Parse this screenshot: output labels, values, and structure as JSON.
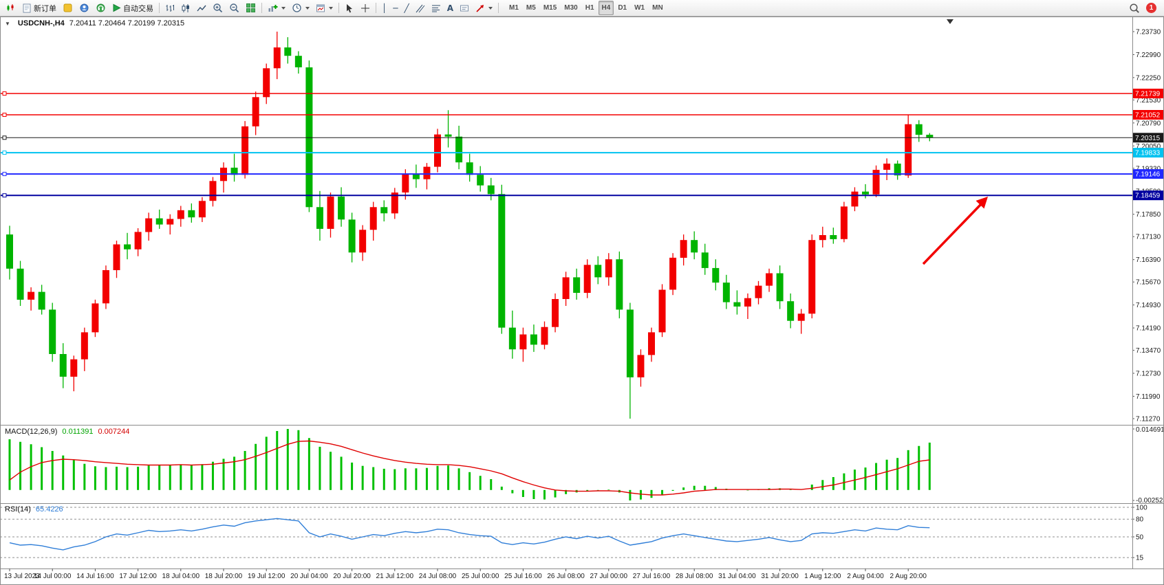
{
  "toolbar": {
    "new_order_label": "新订单",
    "autotrading_label": "自动交易",
    "timeframes": [
      "M1",
      "M5",
      "M15",
      "M30",
      "H1",
      "H4",
      "D1",
      "W1",
      "MN"
    ],
    "active_timeframe": "H4",
    "notification_count": "1"
  },
  "chart": {
    "title": "USDCNH-,H4",
    "ohlc_text": "7.20411 7.20464 7.20199 7.20315"
  },
  "chart_data": {
    "type": "candlestick",
    "symbol": "USDCNH-",
    "timeframe": "H4",
    "current_ohlc": {
      "open": 7.20411,
      "high": 7.20464,
      "low": 7.20199,
      "close": 7.20315
    },
    "price_range": {
      "top": 7.2373,
      "bottom": 7.1127
    },
    "price_axis_labels": [
      "7.23730",
      "7.22990",
      "7.22250",
      "7.21530",
      "7.20790",
      "7.20050",
      "7.19330",
      "7.18590",
      "7.17850",
      "7.17130",
      "7.16390",
      "7.15670",
      "7.14930",
      "7.14190",
      "7.13470",
      "7.12730",
      "7.11990",
      "7.11270"
    ],
    "time_labels": [
      "13 Jul 2023",
      "14 Jul 00:00",
      "14 Jul 16:00",
      "17 Jul 12:00",
      "18 Jul 04:00",
      "18 Jul 20:00",
      "19 Jul 12:00",
      "20 Jul 04:00",
      "20 Jul 20:00",
      "21 Jul 12:00",
      "24 Jul 08:00",
      "25 Jul 00:00",
      "25 Jul 16:00",
      "26 Jul 08:00",
      "27 Jul 00:00",
      "27 Jul 16:00",
      "28 Jul 08:00",
      "31 Jul 04:00",
      "31 Jul 20:00",
      "1 Aug 12:00",
      "2 Aug 04:00",
      "2 Aug 20:00"
    ],
    "candles": [
      [
        7.172,
        7.1748,
        7.1575,
        7.161
      ],
      [
        7.161,
        7.1635,
        7.149,
        7.151
      ],
      [
        7.151,
        7.155,
        7.1475,
        7.1535
      ],
      [
        7.1535,
        7.1558,
        7.1462,
        7.1478
      ],
      [
        7.1478,
        7.15,
        7.131,
        7.1335
      ],
      [
        7.1335,
        7.137,
        7.1225,
        7.1262
      ],
      [
        7.1262,
        7.133,
        7.1215,
        7.1318
      ],
      [
        7.1318,
        7.142,
        7.128,
        7.1405
      ],
      [
        7.1405,
        7.151,
        7.139,
        7.1498
      ],
      [
        7.1498,
        7.162,
        7.148,
        7.1605
      ],
      [
        7.1605,
        7.17,
        7.158,
        7.1688
      ],
      [
        7.1688,
        7.1725,
        7.164,
        7.1672
      ],
      [
        7.1672,
        7.174,
        7.165,
        7.1728
      ],
      [
        7.1728,
        7.179,
        7.17,
        7.1772
      ],
      [
        7.1772,
        7.18,
        7.1738,
        7.1752
      ],
      [
        7.1752,
        7.1785,
        7.172,
        7.177
      ],
      [
        7.177,
        7.1812,
        7.1745,
        7.1798
      ],
      [
        7.1798,
        7.182,
        7.1758,
        7.1775
      ],
      [
        7.1775,
        7.184,
        7.176,
        7.1828
      ],
      [
        7.1828,
        7.1905,
        7.181,
        7.1892
      ],
      [
        7.1892,
        7.1952,
        7.1855,
        7.1935
      ],
      [
        7.1935,
        7.198,
        7.189,
        7.1912
      ],
      [
        7.1912,
        7.2085,
        7.19,
        7.2068
      ],
      [
        7.2068,
        7.218,
        7.204,
        7.2162
      ],
      [
        7.2162,
        7.227,
        7.214,
        7.2255
      ],
      [
        7.2255,
        7.2373,
        7.222,
        7.2322
      ],
      [
        7.2322,
        7.2355,
        7.227,
        7.2295
      ],
      [
        7.2295,
        7.231,
        7.2238,
        7.2258
      ],
      [
        7.2258,
        7.228,
        7.1792,
        7.1808
      ],
      [
        7.1808,
        7.186,
        7.17,
        7.1738
      ],
      [
        7.1738,
        7.1855,
        7.171,
        7.1842
      ],
      [
        7.1842,
        7.1872,
        7.1745,
        7.1768
      ],
      [
        7.1768,
        7.179,
        7.163,
        7.1662
      ],
      [
        7.1662,
        7.175,
        7.1635,
        7.1735
      ],
      [
        7.1735,
        7.1825,
        7.17,
        7.1808
      ],
      [
        7.1808,
        7.183,
        7.1762,
        7.1788
      ],
      [
        7.1788,
        7.187,
        7.177,
        7.1855
      ],
      [
        7.1855,
        7.193,
        7.1832,
        7.1915
      ],
      [
        7.1915,
        7.1945,
        7.187,
        7.1898
      ],
      [
        7.1898,
        7.195,
        7.1865,
        7.1938
      ],
      [
        7.1938,
        7.206,
        7.192,
        7.2042
      ],
      [
        7.2042,
        7.212,
        7.2,
        7.2035
      ],
      [
        7.2035,
        7.207,
        7.193,
        7.1952
      ],
      [
        7.1952,
        7.198,
        7.189,
        7.1912
      ],
      [
        7.1912,
        7.194,
        7.1858,
        7.1878
      ],
      [
        7.1878,
        7.1902,
        7.183,
        7.185
      ],
      [
        7.185,
        7.188,
        7.14,
        7.142
      ],
      [
        7.142,
        7.1475,
        7.132,
        7.135
      ],
      [
        7.135,
        7.142,
        7.131,
        7.1398
      ],
      [
        7.1398,
        7.143,
        7.1342,
        7.1365
      ],
      [
        7.1365,
        7.144,
        7.135,
        7.1422
      ],
      [
        7.1422,
        7.153,
        7.1405,
        7.1512
      ],
      [
        7.1512,
        7.16,
        7.149,
        7.1582
      ],
      [
        7.1582,
        7.161,
        7.151,
        7.1532
      ],
      [
        7.1532,
        7.164,
        7.1515,
        7.1622
      ],
      [
        7.1622,
        7.165,
        7.156,
        7.1582
      ],
      [
        7.1582,
        7.166,
        7.1555,
        7.164
      ],
      [
        7.164,
        7.1665,
        7.145,
        7.1478
      ],
      [
        7.1478,
        7.15,
        7.1127,
        7.126
      ],
      [
        7.126,
        7.135,
        7.123,
        7.1332
      ],
      [
        7.1332,
        7.142,
        7.131,
        7.1405
      ],
      [
        7.1405,
        7.156,
        7.139,
        7.1542
      ],
      [
        7.1542,
        7.166,
        7.1525,
        7.1645
      ],
      [
        7.1645,
        7.172,
        7.162,
        7.1702
      ],
      [
        7.1702,
        7.173,
        7.164,
        7.1662
      ],
      [
        7.1662,
        7.169,
        7.159,
        7.1612
      ],
      [
        7.1612,
        7.164,
        7.154,
        7.1565
      ],
      [
        7.1565,
        7.159,
        7.148,
        7.1502
      ],
      [
        7.1502,
        7.154,
        7.1462,
        7.1488
      ],
      [
        7.1488,
        7.153,
        7.1448,
        7.1515
      ],
      [
        7.1515,
        7.157,
        7.1495,
        7.1555
      ],
      [
        7.1555,
        7.161,
        7.1535,
        7.1595
      ],
      [
        7.1595,
        7.162,
        7.148,
        7.1505
      ],
      [
        7.1505,
        7.153,
        7.1418,
        7.1442
      ],
      [
        7.1442,
        7.148,
        7.14,
        7.1465
      ],
      [
        7.1465,
        7.172,
        7.145,
        7.1702
      ],
      [
        7.1702,
        7.1745,
        7.1678,
        7.1718
      ],
      [
        7.1718,
        7.1742,
        7.169,
        7.1705
      ],
      [
        7.1705,
        7.1825,
        7.1695,
        7.181
      ],
      [
        7.181,
        7.1872,
        7.1795,
        7.1858
      ],
      [
        7.1858,
        7.1882,
        7.1836,
        7.1849
      ],
      [
        7.1849,
        7.1942,
        7.184,
        7.1928
      ],
      [
        7.1928,
        7.1965,
        7.1895,
        7.1948
      ],
      [
        7.1948,
        7.1958,
        7.1896,
        7.191
      ],
      [
        7.191,
        7.2105,
        7.1902,
        7.2075
      ],
      [
        7.2075,
        7.2088,
        7.2018,
        7.2041
      ],
      [
        7.20411,
        7.20464,
        7.20199,
        7.20315
      ]
    ],
    "levels": [
      {
        "label": "7.21739",
        "price": 7.21739,
        "color": "#f40000",
        "width": 1.4
      },
      {
        "label": "7.21052",
        "price": 7.21052,
        "color": "#f40000",
        "width": 1.4
      },
      {
        "label": "7.20315",
        "price": 7.20315,
        "color": "#1a1a1a",
        "width": 1,
        "current": true
      },
      {
        "label": "7.19833",
        "price": 7.19833,
        "color": "#00c2f0",
        "width": 2
      },
      {
        "label": "7.19146",
        "price": 7.19146,
        "color": "#2028ff",
        "width": 2
      },
      {
        "label": "7.18459",
        "price": 7.18459,
        "color": "#0000a0",
        "width": 2
      }
    ],
    "colors": {
      "bull": "#f20000",
      "bear": "#00b400",
      "macd_histogram": "#00c000",
      "macd_signal": "#e00000",
      "rsi_line": "#2f7ed8"
    }
  },
  "macd": {
    "label": "MACD(12,26,9)",
    "value_main": "0.011391",
    "value_signal": "0.007244",
    "scale_max": "0.014691",
    "scale_min": "-0.002524",
    "histogram": [
      0.0122,
      0.0116,
      0.011,
      0.0103,
      0.0094,
      0.0083,
      0.0072,
      0.0063,
      0.0057,
      0.0055,
      0.0056,
      0.0055,
      0.0056,
      0.0059,
      0.006,
      0.006,
      0.0061,
      0.006,
      0.0062,
      0.0068,
      0.0075,
      0.008,
      0.0094,
      0.0111,
      0.0128,
      0.0142,
      0.014691,
      0.0144,
      0.0125,
      0.0104,
      0.0092,
      0.008,
      0.0066,
      0.0058,
      0.0055,
      0.0051,
      0.005,
      0.0052,
      0.0052,
      0.0053,
      0.0058,
      0.0059,
      0.0052,
      0.0043,
      0.0034,
      0.0026,
      0.0008,
      -0.0008,
      -0.0017,
      -0.0022,
      -0.0023,
      -0.0018,
      -0.001,
      -0.0006,
      -0.0002,
      -0.0001,
      0.0001,
      -0.0006,
      -0.002524,
      -0.0023,
      -0.0019,
      -0.0011,
      -0.0002,
      0.0006,
      0.001,
      0.001,
      0.0007,
      0.0003,
      0.0,
      -0.0001,
      0.0001,
      0.0004,
      0.0004,
      0.0001,
      0.0,
      0.0013,
      0.0024,
      0.0031,
      0.004,
      0.0049,
      0.0054,
      0.0065,
      0.0073,
      0.0077,
      0.0096,
      0.0106,
      0.011391
    ],
    "signal": [
      0.0024,
      0.0043,
      0.0056,
      0.0066,
      0.0071,
      0.0074,
      0.0073,
      0.0071,
      0.0068,
      0.0066,
      0.0064,
      0.0062,
      0.0061,
      0.006,
      0.006,
      0.006,
      0.0061,
      0.006,
      0.0061,
      0.0062,
      0.0065,
      0.0068,
      0.0073,
      0.0081,
      0.009,
      0.01,
      0.011,
      0.0117,
      0.0118,
      0.0115,
      0.0111,
      0.0105,
      0.0097,
      0.0089,
      0.0082,
      0.0076,
      0.0071,
      0.0067,
      0.0064,
      0.0062,
      0.0061,
      0.0061,
      0.0059,
      0.0056,
      0.0051,
      0.0046,
      0.0039,
      0.0029,
      0.002,
      0.0012,
      0.0005,
      0.0,
      -0.0002,
      -0.0003,
      -0.0003,
      -0.0002,
      -0.0002,
      -0.0003,
      -0.0007,
      -0.001,
      -0.0012,
      -0.0012,
      -0.001,
      -0.0007,
      -0.0003,
      -0.0001,
      0.0001,
      0.0001,
      0.0001,
      0.0001,
      0.0001,
      0.0001,
      0.0002,
      0.0002,
      0.0001,
      0.0004,
      0.0008,
      0.0012,
      0.0018,
      0.0024,
      0.003,
      0.0037,
      0.0044,
      0.0051,
      0.006,
      0.0069,
      0.007244
    ]
  },
  "rsi": {
    "label": "RSI(14)",
    "value": "65.4226",
    "levels": [
      "100",
      "80",
      "50",
      "15"
    ],
    "values": [
      40,
      36,
      37,
      35,
      31,
      28,
      33,
      36,
      42,
      50,
      55,
      53,
      57,
      61,
      59,
      60,
      62,
      60,
      63,
      67,
      70,
      68,
      74,
      77,
      79,
      81,
      79,
      77,
      57,
      50,
      55,
      51,
      46,
      50,
      54,
      52,
      56,
      59,
      57,
      59,
      63,
      62,
      57,
      54,
      52,
      51,
      40,
      37,
      40,
      38,
      41,
      46,
      50,
      47,
      51,
      48,
      51,
      43,
      36,
      39,
      42,
      48,
      52,
      55,
      52,
      49,
      46,
      43,
      42,
      44,
      46,
      49,
      45,
      42,
      44,
      55,
      57,
      56,
      59,
      62,
      60,
      65,
      63,
      62,
      69,
      66,
      65.4226
    ]
  },
  "annotation": {
    "arrow_color": "#f20000"
  }
}
